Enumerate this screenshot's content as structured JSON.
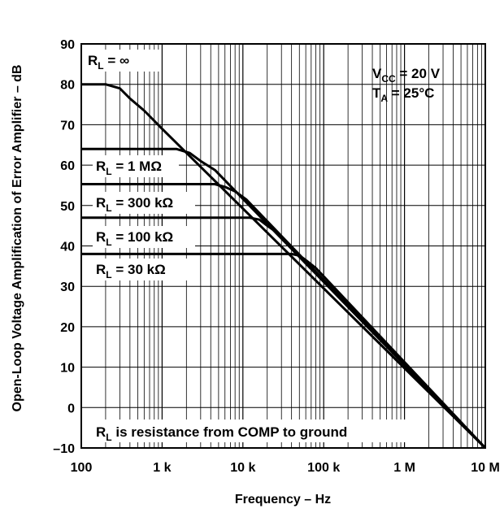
{
  "chart_data": {
    "type": "line",
    "xscale": "log",
    "xlim": [
      100,
      10000000
    ],
    "ylim": [
      -10,
      90
    ],
    "xlabel": "Frequency – Hz",
    "ylabel": "Open-Loop Voltage Amplification of Error Amplifier – dB",
    "x_tick_labels": [
      "100",
      "1 k",
      "10 k",
      "100 k",
      "1 M",
      "10 M"
    ],
    "y_tick_labels": [
      "–10",
      "0",
      "10",
      "20",
      "30",
      "40",
      "50",
      "60",
      "70",
      "80",
      "90"
    ],
    "grid": true,
    "conditions": {
      "vcc": {
        "main": "V",
        "sub": "CC",
        "rest": " = 20 V"
      },
      "ta": {
        "main": "T",
        "sub": "A",
        "rest": " = 25°C"
      }
    },
    "note": {
      "main": "R",
      "sub": "L",
      "rest": " is resistance from COMP to ground"
    },
    "series": [
      {
        "label_main": "R",
        "label_sub": "L",
        "label_rest": " =  ∞",
        "points": [
          [
            100,
            80
          ],
          [
            200,
            80
          ],
          [
            300,
            79
          ],
          [
            400,
            76.5
          ],
          [
            600,
            73.5
          ],
          [
            1000,
            69
          ],
          [
            10000000,
            -10
          ]
        ]
      },
      {
        "label_main": "R",
        "label_sub": "L",
        "label_rest": " = 1 MΩ",
        "points": [
          [
            100,
            64
          ],
          [
            1500,
            64
          ],
          [
            2200,
            63
          ],
          [
            3000,
            61
          ],
          [
            4500,
            58.8
          ],
          [
            10000000,
            -10
          ]
        ]
      },
      {
        "label_main": "R",
        "label_sub": "L",
        "label_rest": " = 300 kΩ",
        "points": [
          [
            100,
            55.3
          ],
          [
            4500,
            55.3
          ],
          [
            6000,
            54.6
          ],
          [
            8000,
            53.5
          ],
          [
            11000,
            51.5
          ],
          [
            10000000,
            -10
          ]
        ]
      },
      {
        "label_main": "R",
        "label_sub": "L",
        "label_rest": " = 100 kΩ",
        "points": [
          [
            100,
            47
          ],
          [
            12000,
            47
          ],
          [
            16000,
            46.5
          ],
          [
            20000,
            45
          ],
          [
            28000,
            43
          ],
          [
            10000000,
            -10
          ]
        ]
      },
      {
        "label_main": "R",
        "label_sub": "L",
        "label_rest": " = 30 kΩ",
        "points": [
          [
            100,
            38
          ],
          [
            40000,
            38
          ],
          [
            50000,
            37.6
          ],
          [
            60000,
            36.5
          ],
          [
            80000,
            34.5
          ],
          [
            10000000,
            -10
          ]
        ]
      }
    ]
  }
}
